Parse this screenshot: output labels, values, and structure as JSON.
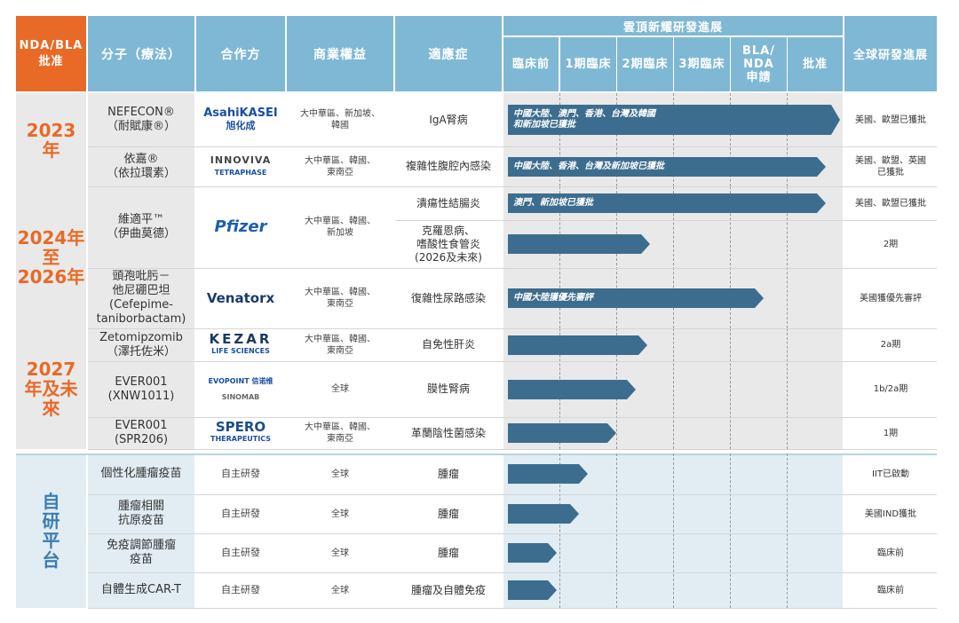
{
  "colors": {
    "header": "#7fb8d4",
    "header_orange": "#e86a26",
    "bar": "#3d6d8e",
    "year_orange": "#e86a26",
    "year_blue": "#3b7db3"
  },
  "header": {
    "approval": "NDA/BLA\n批准",
    "molecule": "分子（療法）",
    "partner": "合作方",
    "rights": "商業權益",
    "indication": "適應症",
    "everest_progress": "雲頂新耀研發進展",
    "phases": [
      "臨床前",
      "1期臨床",
      "2期臨床",
      "3期臨床",
      "BLA/\nNDA\n申請",
      "批准"
    ],
    "global": "全球研發進展"
  },
  "groups": [
    {
      "label": "2023\n年",
      "style": "orange"
    },
    {
      "label": "2024年至\n2026年",
      "style": "orange"
    },
    {
      "label": "2027\n年及未來",
      "style": "orange"
    },
    {
      "label": "自\n研\n平\n台",
      "style": "blue"
    }
  ],
  "molecules": [
    {
      "name": "NEFECON®\n（耐賦康®）",
      "partner": "AsahiKASEI",
      "partner_sub": "旭化成",
      "partner_icon": "asahi-kasei-logo",
      "rights": "大中華區、新加坡、\n韓國"
    },
    {
      "name": "依嘉®\n（依拉環素）",
      "partner": "INNOVIVA",
      "partner_sub": "TETRAPHASE",
      "partner_icon": "innoviva-logo",
      "rights": "大中華區、韓國、\n東南亞"
    },
    {
      "name": "維適平™\n（伊曲莫德）",
      "partner": "Pfizer",
      "partner_icon": "pfizer-logo",
      "rights": "大中華區、韓國、\n新加坡"
    },
    {
      "name": "頭孢吡肟－\n他尼硼巴坦\n(Cefepime-\ntaniborbactam)",
      "partner": "Venatorx",
      "partner_icon": "venatorx-logo",
      "rights": "大中華區、韓國、\n東南亞"
    },
    {
      "name": "Zetomipzomib\n（澤托佐米）",
      "partner": "KEZAR",
      "partner_sub": "LIFE SCIENCES",
      "partner_icon": "kezar-logo",
      "rights": "大中華區、韓國、\n東南亞"
    },
    {
      "name": "EVER001\n(XNW1011)",
      "partner": "EVOPOINT 信诺维",
      "partner2": "SINOMAB",
      "partner_icon": "evopoint-sinomab-logo",
      "rights": "全球"
    },
    {
      "name": "EVER001\n(SPR206)",
      "partner": "SPERO",
      "partner_sub": "THERAPEUTICS",
      "partner_icon": "spero-logo",
      "rights": "大中華區、韓國、\n東南亞"
    },
    {
      "name": "個性化腫瘤疫苗",
      "partner": "自主研發",
      "rights": "全球"
    },
    {
      "name": "腫瘤相關\n抗原疫苗",
      "partner": "自主研發",
      "rights": "全球"
    },
    {
      "name": "免疫調節腫瘤\n疫苗",
      "partner": "自主研發",
      "rights": "全球"
    },
    {
      "name": "自體生成CAR-T",
      "partner": "自主研發",
      "rights": "全球"
    }
  ],
  "indications": [
    {
      "name": "IgA腎病",
      "bar_stage": 5.95,
      "bar_label": "中國大陸、澳門、香港、台灣及韓國\n和新加坡已獲批",
      "global": "美國、歐盟已獲批"
    },
    {
      "name": "複雜性腹腔內感染",
      "bar_stage": 5.7,
      "bar_label": "中國大陸、香港、台灣及新加坡已獲批",
      "global": "美國、歐盟、英國\n已獲批"
    },
    {
      "name": "潰瘍性結腸炎",
      "bar_stage": 5.7,
      "bar_label": "澳門、新加坡已獲批",
      "global": "美國、歐盟已獲批"
    },
    {
      "name": "克羅恩病、\n嗜酸性食管炎\n(2026及未來)",
      "bar_stage": 2.6,
      "bar_label": "",
      "global": "2期"
    },
    {
      "name": "復雜性尿路感染",
      "bar_stage": 4.6,
      "bar_label": "中國大陸獲優先審評",
      "global": "美國獲優先審評"
    },
    {
      "name": "自免性肝炎",
      "bar_stage": 2.55,
      "bar_label": "",
      "global": "2a期"
    },
    {
      "name": "膜性腎病",
      "bar_stage": 2.35,
      "bar_label": "",
      "global": "1b/2a期"
    },
    {
      "name": "革蘭陰性菌感染",
      "bar_stage": 2.0,
      "bar_label": "",
      "global": "1期"
    },
    {
      "name": "腫瘤",
      "bar_stage": 1.5,
      "bar_label": "",
      "global": "IIT已啟動"
    },
    {
      "name": "腫瘤",
      "bar_stage": 1.35,
      "bar_label": "",
      "global": "美國IND獲批"
    },
    {
      "name": "腫瘤",
      "bar_stage": 0.95,
      "bar_label": "",
      "global": "臨床前"
    },
    {
      "name": "腫瘤及自體免疫",
      "bar_stage": 0.95,
      "bar_label": "",
      "global": "臨床前"
    }
  ]
}
